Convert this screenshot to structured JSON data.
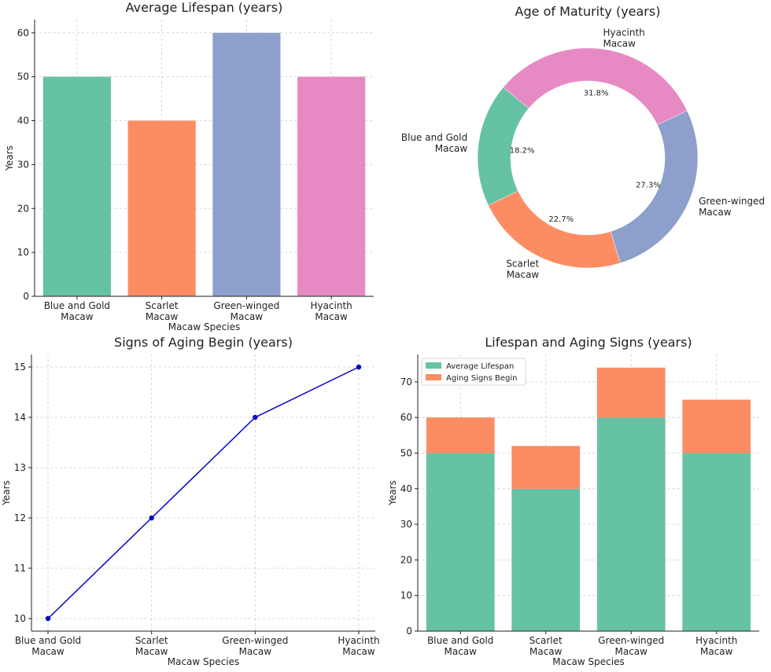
{
  "chart_data": [
    {
      "type": "bar",
      "title": "Average Lifespan (years)",
      "xlabel": "Macaw Species",
      "ylabel": "Years",
      "categories": [
        "Blue and Gold\nMacaw",
        "Scarlet\nMacaw",
        "Green-winged\nMacaw",
        "Hyacinth\nMacaw"
      ],
      "values": [
        50,
        40,
        60,
        50
      ],
      "colors": [
        "#66c2a5",
        "#fc8d62",
        "#8da0cb",
        "#e78ac3"
      ],
      "ylim": [
        0,
        63
      ],
      "yticks": [
        0,
        10,
        20,
        30,
        40,
        50,
        60
      ],
      "grid": true
    },
    {
      "type": "pie",
      "style": "donut",
      "title": "Age of Maturity (years)",
      "labels": [
        "Blue and Gold\nMacaw",
        "Scarlet\nMacaw",
        "Green-winged\nMacaw",
        "Hyacinth\nMacaw"
      ],
      "percentages": [
        "18.2%",
        "22.7%",
        "27.3%",
        "31.8%"
      ],
      "values": [
        4,
        5,
        6,
        7
      ],
      "colors": [
        "#66c2a5",
        "#fc8d62",
        "#8da0cb",
        "#e78ac3"
      ],
      "start_angle_deg": 140
    },
    {
      "type": "line",
      "title": "Signs of Aging Begin (years)",
      "xlabel": "Macaw Species",
      "ylabel": "Years",
      "categories": [
        "Blue and Gold\nMacaw",
        "Scarlet\nMacaw",
        "Green-winged\nMacaw",
        "Hyacinth\nMacaw"
      ],
      "values": [
        10,
        12,
        14,
        15
      ],
      "color": "#0000cc",
      "ylim": [
        9.75,
        15.25
      ],
      "yticks": [
        10,
        11,
        12,
        13,
        14,
        15
      ],
      "grid": true
    },
    {
      "type": "bar",
      "stacked": true,
      "title": "Lifespan and Aging Signs (years)",
      "xlabel": "Macaw Species",
      "ylabel": "Years",
      "categories": [
        "Blue and Gold\nMacaw",
        "Scarlet\nMacaw",
        "Green-winged\nMacaw",
        "Hyacinth\nMacaw"
      ],
      "series": [
        {
          "name": "Average Lifespan",
          "values": [
            50,
            40,
            60,
            50
          ],
          "color": "#66c2a5"
        },
        {
          "name": "Aging Signs Begin",
          "values": [
            10,
            12,
            14,
            15
          ],
          "color": "#fc8d62"
        }
      ],
      "ylim": [
        0,
        77.7
      ],
      "yticks": [
        0,
        10,
        20,
        30,
        40,
        50,
        60,
        70
      ],
      "legend": "top-left",
      "grid": true
    }
  ]
}
